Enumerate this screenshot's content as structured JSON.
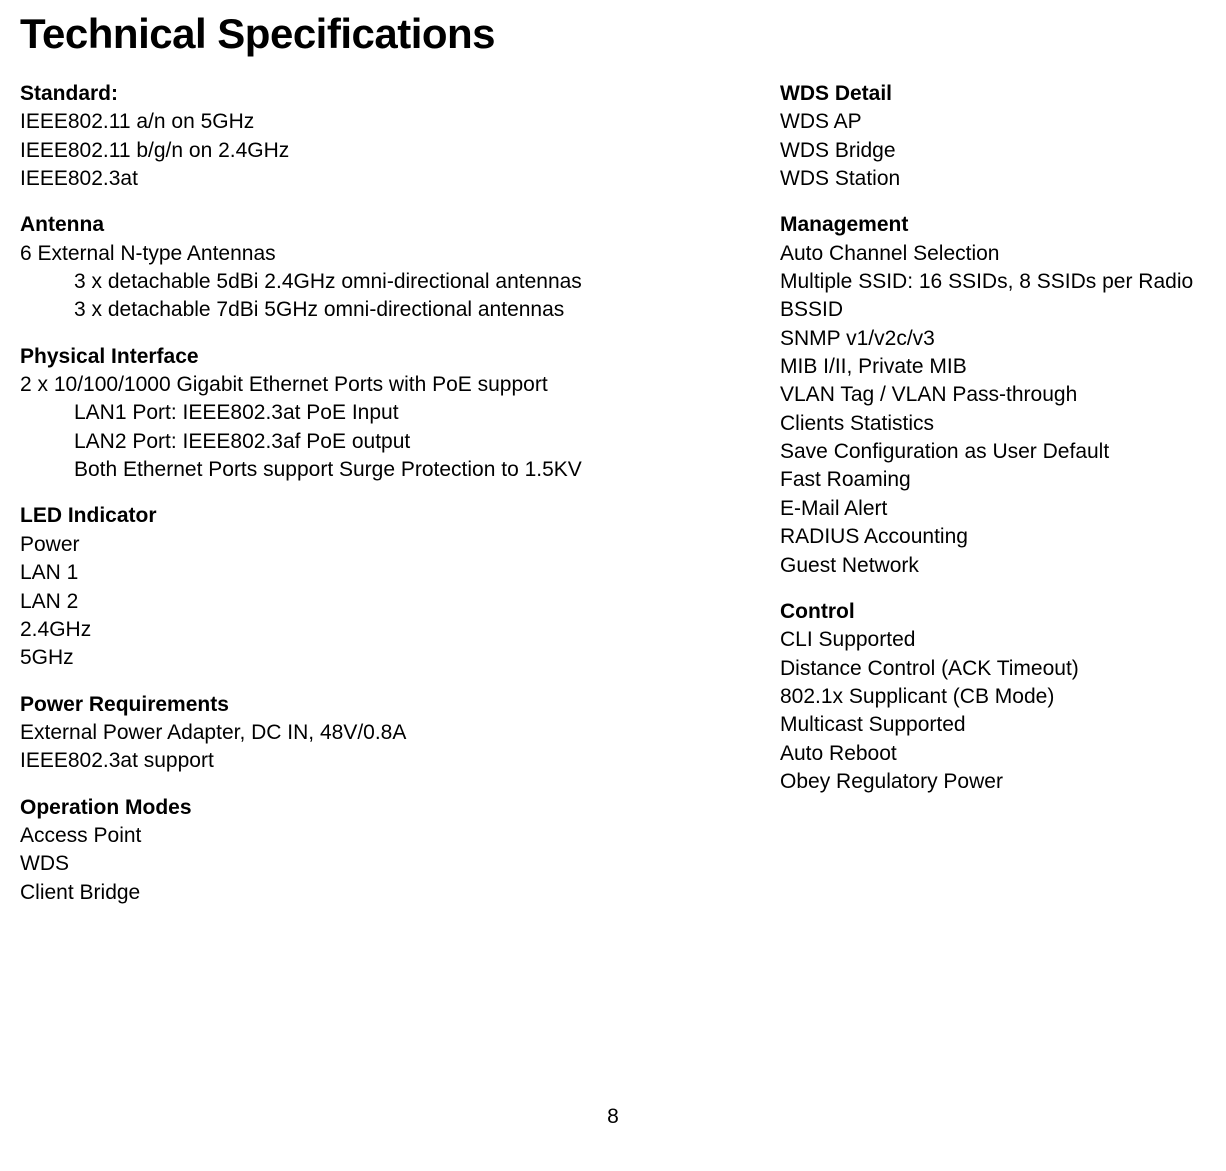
{
  "title": "Technical Specifications",
  "pageNumber": "8",
  "leftColumn": {
    "standard": {
      "header": "Standard:",
      "items": [
        "IEEE802.11 a/n on 5GHz",
        "IEEE802.11 b/g/n on 2.4GHz",
        "IEEE802.3at"
      ]
    },
    "antenna": {
      "header": "Antenna",
      "mainItem": "6 External N-type Antennas",
      "subItems": [
        "3 x detachable 5dBi 2.4GHz omni-directional antennas",
        "3 x detachable 7dBi 5GHz omni-directional antennas"
      ]
    },
    "physicalInterface": {
      "header": "Physical Interface",
      "mainItem": "2 x 10/100/1000 Gigabit Ethernet Ports with PoE support",
      "subItems": [
        "LAN1 Port: IEEE802.3at PoE Input",
        "LAN2 Port: IEEE802.3af PoE output",
        "Both Ethernet Ports support Surge Protection to 1.5KV"
      ]
    },
    "ledIndicator": {
      "header": "LED Indicator",
      "items": [
        "Power",
        "LAN 1",
        "LAN 2",
        "2.4GHz",
        "5GHz"
      ]
    },
    "powerRequirements": {
      "header": "Power Requirements",
      "items": [
        "External Power Adapter, DC IN, 48V/0.8A",
        "IEEE802.3at support"
      ]
    },
    "operationModes": {
      "header": "Operation Modes",
      "items": [
        "Access Point",
        "WDS",
        "Client Bridge"
      ]
    }
  },
  "rightColumn": {
    "wdsDetail": {
      "header": "WDS Detail",
      "items": [
        "WDS AP",
        "WDS Bridge",
        "WDS Station"
      ]
    },
    "management": {
      "header": "Management",
      "items": [
        "Auto Channel Selection",
        "Multiple SSID: 16 SSIDs, 8 SSIDs per Radio",
        "BSSID",
        "SNMP v1/v2c/v3",
        "MIB I/II, Private MIB",
        "VLAN Tag / VLAN Pass-through",
        "Clients Statistics",
        "Save Configuration as User Default",
        "Fast Roaming",
        "E-Mail Alert",
        "RADIUS Accounting",
        "Guest Network"
      ]
    },
    "control": {
      "header": "Control",
      "items": [
        "CLI Supported",
        "Distance Control (ACK Timeout)",
        "802.1x Supplicant (CB Mode)",
        "Multicast Supported",
        "Auto Reboot",
        "Obey Regulatory Power"
      ]
    }
  }
}
